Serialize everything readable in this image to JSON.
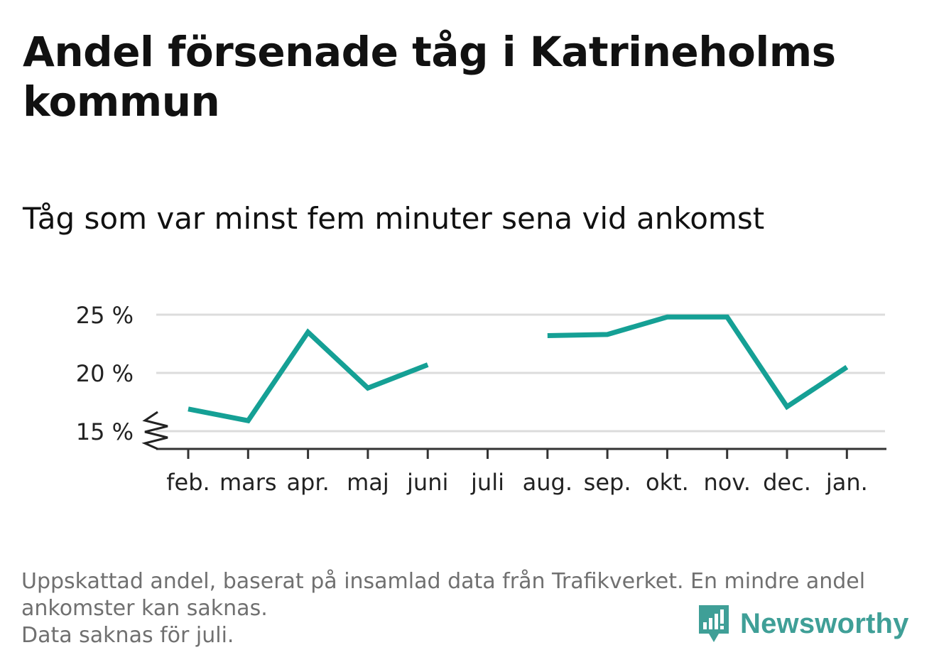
{
  "title": "Andel försenade tåg i Katrineholms kommun",
  "subtitle": "Tåg som var minst fem minuter sena vid ankomst",
  "notes": [
    "Uppskattad andel, baserat på insamlad data från Trafikverket. En mindre andel",
    "ankomster kan saknas.",
    "Data saknas för juli."
  ],
  "brand": {
    "name": "Newsworthy",
    "color": "#3f9f97"
  },
  "chart_data": {
    "type": "line",
    "categories": [
      "feb.",
      "mars",
      "apr.",
      "maj",
      "juni",
      "juli",
      "aug.",
      "sep.",
      "okt.",
      "nov.",
      "dec.",
      "jan."
    ],
    "series": [
      {
        "values": [
          16.9,
          15.9,
          23.5,
          18.7,
          20.7,
          null,
          23.2,
          23.3,
          24.8,
          24.8,
          17.1,
          20.5
        ],
        "color": "#15a095"
      }
    ],
    "y_ticks": [
      15,
      20,
      25
    ],
    "y_tick_labels": [
      "15 %",
      "20 %",
      "25 %"
    ],
    "ylim": [
      15,
      25
    ],
    "y_axis_break": true,
    "grid": true,
    "xlabel": "",
    "ylabel": "",
    "missing": [
      "juli"
    ]
  }
}
